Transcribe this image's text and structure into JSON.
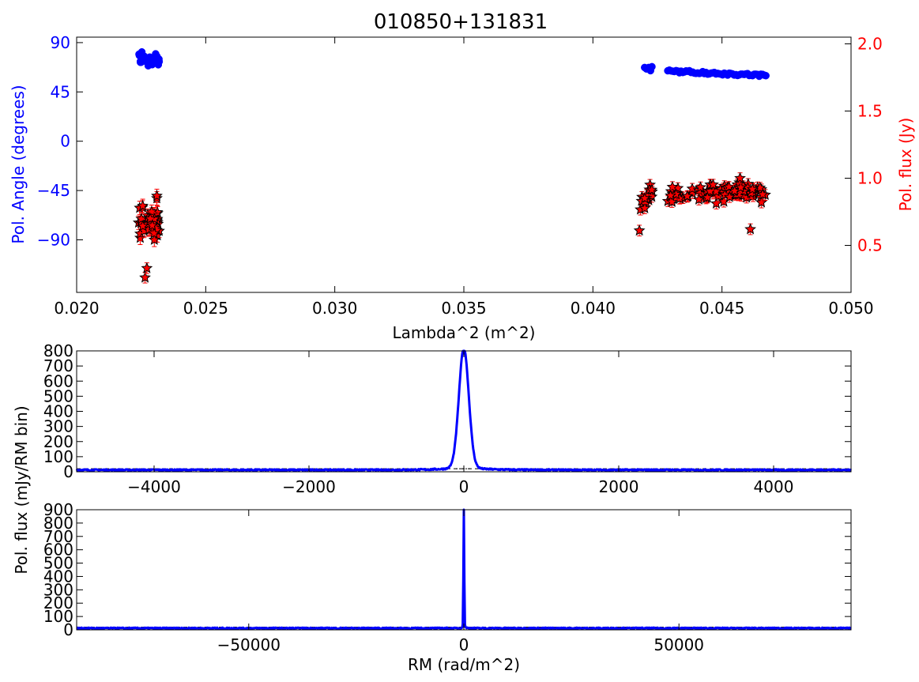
{
  "title": "010850+131831",
  "colors": {
    "blue": "#0000ff",
    "red": "#ff0000",
    "black": "#000000"
  },
  "chart_data": [
    {
      "id": "angle-flux-panel",
      "type": "scatter",
      "title": "010850+131831",
      "xlabel": "Lambda^2 (m^2)",
      "ylabel_left": "Pol. Angle (degrees)",
      "ylabel_right": "Pol. flux (Jy)",
      "xlim": [
        0.02,
        0.05
      ],
      "ylim_left": [
        -138,
        95
      ],
      "ylim_right": [
        0.15,
        2.05
      ],
      "xticks": [
        "0.020",
        "0.025",
        "0.030",
        "0.035",
        "0.040",
        "0.045",
        "0.050"
      ],
      "yticks_left": [
        "90",
        "45",
        "0",
        "−45",
        "−90"
      ],
      "yticks_right": [
        "2.0",
        "1.5",
        "1.0",
        "0.5"
      ],
      "grid": false,
      "series": [
        {
          "axis": "left",
          "marker": "circle",
          "color": "#0000ff",
          "groups": [
            {
              "x_range": [
                0.0224,
                0.0232
              ],
              "n": 30,
              "y_center": 75,
              "y_spread": 7
            },
            {
              "x_range": [
                0.0418,
                0.0423
              ],
              "n": 6,
              "y_center": 66,
              "y_spread": 3
            },
            {
              "x_range": [
                0.0429,
                0.0467
              ],
              "n": 60,
              "y_center": 64,
              "y_spread": 1.5,
              "y_slope": -4
            }
          ]
        },
        {
          "axis": "right",
          "marker": "star",
          "color": "#ff0000",
          "error_bars": true,
          "groups": [
            {
              "x_range": [
                0.0224,
                0.0232
              ],
              "n": 50,
              "y_center": 0.68,
              "y_spread": 0.09,
              "err": 0.05
            },
            {
              "x_range": [
                0.0418,
                0.0423
              ],
              "n": 16,
              "y_center": 0.87,
              "y_spread": 0.05,
              "err": 0.04
            },
            {
              "x_range": [
                0.0429,
                0.0467
              ],
              "n": 90,
              "y_center": 0.89,
              "y_spread": 0.04,
              "err": 0.04
            }
          ],
          "outliers": [
            {
              "x": 0.02265,
              "y": 0.26
            },
            {
              "x": 0.02272,
              "y": 0.33
            },
            {
              "x": 0.0418,
              "y": 0.61
            },
            {
              "x": 0.0457,
              "y": 1.0
            },
            {
              "x": 0.0461,
              "y": 0.62
            }
          ]
        }
      ]
    },
    {
      "id": "rm-spectrum-zoom",
      "type": "line",
      "xlim": [
        -5000,
        5000
      ],
      "ylim": [
        0,
        800
      ],
      "xticks": [
        "−4000",
        "−2000",
        "0",
        "2000",
        "4000"
      ],
      "yticks": [
        "0",
        "100",
        "200",
        "300",
        "400",
        "500",
        "600",
        "700",
        "800"
      ],
      "grid": false,
      "peak": {
        "x": 0,
        "y": 790,
        "fwhm": 150
      },
      "noise_level": 12,
      "dashed_reference": {
        "y": 20
      },
      "color": "#0000ff"
    },
    {
      "id": "rm-spectrum-full",
      "type": "line",
      "xlabel": "RM (rad/m^2)",
      "ylabel": "Pol. flux (mJy/RM bin)",
      "xlim": [
        -90000,
        90000
      ],
      "ylim": [
        0,
        900
      ],
      "xticks": [
        "−50000",
        "0",
        "50000"
      ],
      "yticks": [
        "0",
        "100",
        "200",
        "300",
        "400",
        "500",
        "600",
        "700",
        "800",
        "900"
      ],
      "grid": false,
      "peak": {
        "x": 0,
        "y": 870,
        "fwhm": 220
      },
      "noise_level": 12,
      "dashed_reference": {
        "y": 20
      },
      "color": "#0000ff"
    }
  ]
}
